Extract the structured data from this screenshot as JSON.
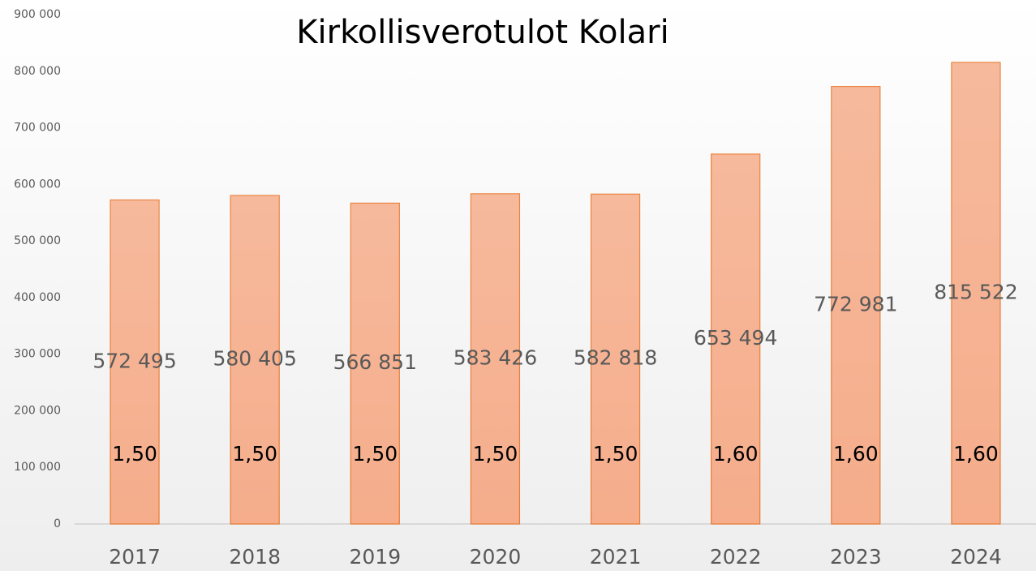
{
  "chart_data": {
    "type": "bar",
    "title": "Kirkollisverotulot Kolari",
    "categories": [
      "2017",
      "2018",
      "2019",
      "2020",
      "2021",
      "2022",
      "2023",
      "2024"
    ],
    "values": [
      572495,
      580405,
      566851,
      583426,
      582818,
      653494,
      772981,
      815522
    ],
    "value_labels": [
      "572 495",
      "580 405",
      "566 851",
      "583 426",
      "582 818",
      "653 494",
      "772 981",
      "815 522"
    ],
    "rate_labels": [
      "1,50",
      "1,50",
      "1,50",
      "1,50",
      "1,50",
      "1,60",
      "1,60",
      "1,60"
    ],
    "color": "#f5ad8b",
    "ylim": [
      0,
      900000
    ],
    "yticks": [
      0,
      {
        "value": 100000,
        "label": "100 000"
      },
      {
        "value": 200000,
        "label": "200 000"
      },
      {
        "value": 300000,
        "label": "300 000"
      },
      {
        "value": 400000,
        "label": "400 000"
      },
      {
        "value": 500000,
        "label": "500 000"
      },
      {
        "value": 600000,
        "label": "600 000"
      },
      {
        "value": 700000,
        "label": "700 000"
      },
      {
        "value": 800000,
        "label": "800 000"
      },
      {
        "value": 900000,
        "label": "900 000"
      }
    ],
    "grid": false
  }
}
